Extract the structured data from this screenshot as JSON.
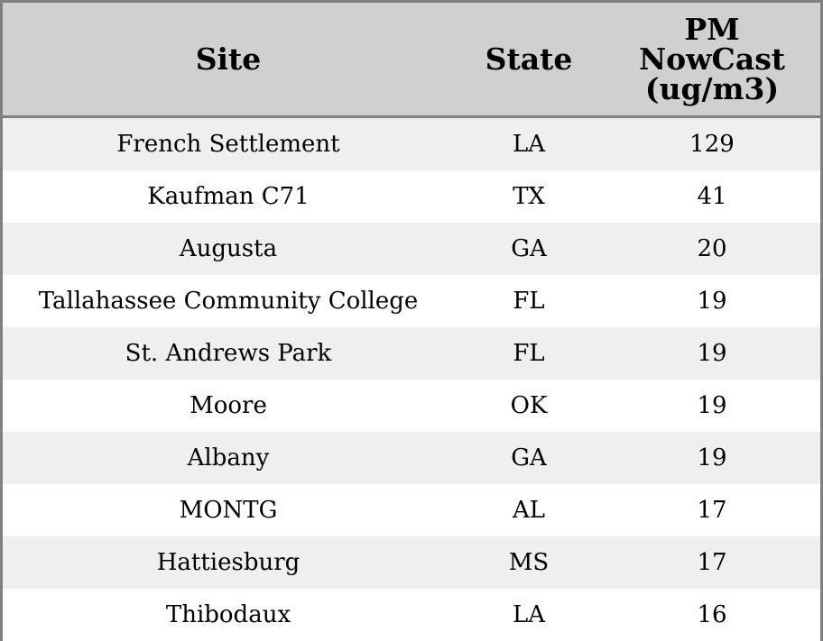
{
  "table": {
    "headers": [
      "Site",
      "State",
      "PM NowCast (ug/m3)"
    ],
    "rows": [
      [
        "French Settlement",
        "LA",
        129
      ],
      [
        "Kaufman C71",
        "TX",
        41
      ],
      [
        "Augusta",
        "GA",
        20
      ],
      [
        "Tallahassee Community College",
        "FL",
        19
      ],
      [
        "St. Andrews Park",
        "FL",
        19
      ],
      [
        "Moore",
        "OK",
        19
      ],
      [
        "Albany",
        "GA",
        19
      ],
      [
        "MONTG",
        "AL",
        17
      ],
      [
        "Hattiesburg",
        "MS",
        17
      ],
      [
        "Thibodaux",
        "LA",
        16
      ]
    ]
  }
}
